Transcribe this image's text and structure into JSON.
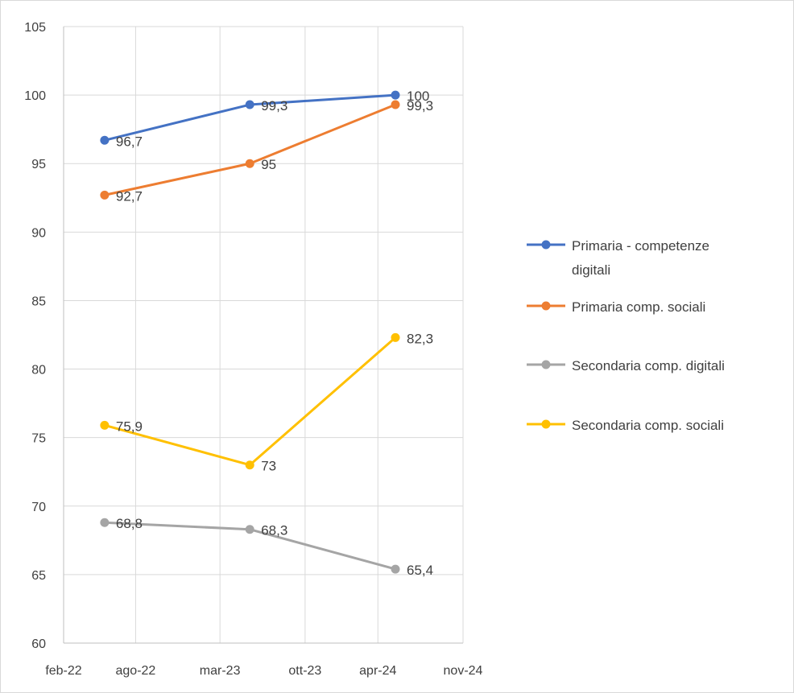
{
  "chart_data": {
    "type": "line",
    "title": "",
    "xlabel": "",
    "ylabel": "",
    "ylim": [
      60,
      105
    ],
    "yticks": [
      60,
      65,
      70,
      75,
      80,
      85,
      90,
      95,
      100,
      105
    ],
    "xlim": [
      "2022-02-01",
      "2024-11-01"
    ],
    "xticks": [
      "feb-22",
      "ago-22",
      "mar-23",
      "ott-23",
      "apr-24",
      "nov-24"
    ],
    "xtick_dates": [
      "2022-02-01",
      "2022-08-01",
      "2023-03-01",
      "2023-10-01",
      "2024-04-01",
      "2024-11-01"
    ],
    "x": [
      "2022-05-15",
      "2023-05-15",
      "2024-05-15"
    ],
    "grid": "vertical and horizontal",
    "legend_position": "right",
    "series": [
      {
        "name": "Primaria - competenze digitali",
        "name_lines": [
          "Primaria - competenze",
          "digitali"
        ],
        "color": "#4472c4",
        "values": [
          96.7,
          99.3,
          100
        ],
        "labels": [
          "96,7",
          "99,3",
          "100"
        ]
      },
      {
        "name": "Primaria comp. sociali",
        "name_lines": [
          "Primaria comp. sociali"
        ],
        "color": "#ed7d31",
        "values": [
          92.7,
          95,
          99.3
        ],
        "labels": [
          "92,7",
          "95",
          "99,3"
        ]
      },
      {
        "name": "Secondaria comp. digitali",
        "name_lines": [
          "Secondaria comp. digitali"
        ],
        "color": "#a5a5a5",
        "values": [
          68.8,
          68.3,
          65.4
        ],
        "labels": [
          "68,8",
          "68,3",
          "65,4"
        ]
      },
      {
        "name": "Secondaria comp. sociali",
        "name_lines": [
          "Secondaria comp. sociali"
        ],
        "color": "#ffc000",
        "values": [
          75.9,
          73,
          82.3
        ],
        "labels": [
          "75,9",
          "73",
          "82,3"
        ]
      }
    ]
  }
}
